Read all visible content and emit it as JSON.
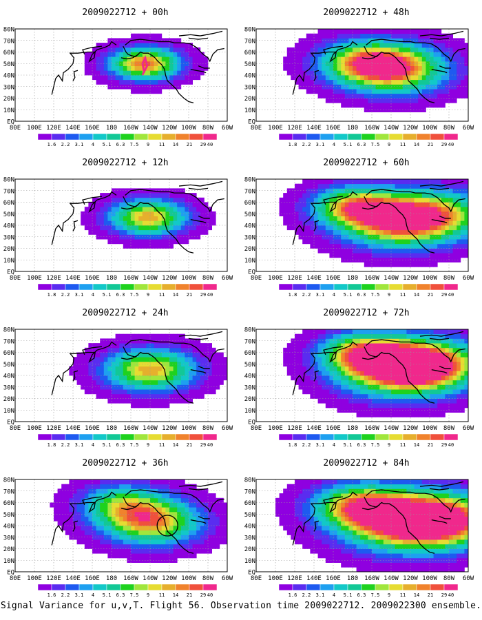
{
  "caption": "Signal Variance for u,v,T. Flight 56. Observation time 2009022712. 2009022300 ensemble.",
  "colors": {
    "palette": [
      "#8f00e0",
      "#5a2cf0",
      "#1e5af0",
      "#1ea0f0",
      "#12c8c8",
      "#12c896",
      "#1ed21e",
      "#a0e63c",
      "#e6dc32",
      "#e6af2d",
      "#f0822d",
      "#f0503c",
      "#f0288c"
    ],
    "coast": "#000000",
    "grid": "#9a9a9a",
    "route": "#f0288c"
  },
  "chart_data": [
    {
      "type": "heatmap",
      "title": "2009022712 + 00h",
      "x_tick_labels": [
        "80E",
        "100E",
        "120E",
        "140E",
        "160E",
        "180",
        "160W",
        "140W",
        "120W",
        "100W",
        "80W",
        "60W"
      ],
      "y_tick_labels": [
        "EQ",
        "10N",
        "20N",
        "30N",
        "40N",
        "50N",
        "60N",
        "70N",
        "80N"
      ],
      "xlim": [
        80,
        300
      ],
      "ylim": [
        0,
        80
      ],
      "grid": true,
      "colorbar_levels": [
        "1.6",
        "2.2",
        "3.1",
        "4",
        "5.1",
        "6.3",
        "7.5",
        "9",
        "11",
        "14",
        "21",
        "29",
        "40"
      ],
      "maxima": [
        {
          "lon": 215,
          "lat": 50,
          "peak": 11,
          "spread": 1.0
        }
      ],
      "features": {
        "route": true
      }
    },
    {
      "type": "heatmap",
      "title": "2009022712 + 48h",
      "x_tick_labels": [
        "80E",
        "100E",
        "120E",
        "140E",
        "160E",
        "180",
        "160W",
        "140W",
        "120W",
        "100W",
        "80W",
        "60W"
      ],
      "y_tick_labels": [
        "EQ",
        "10N",
        "20N",
        "30N",
        "40N",
        "50N",
        "60N",
        "70N",
        "80N"
      ],
      "xlim": [
        80,
        300
      ],
      "ylim": [
        0,
        80
      ],
      "grid": true,
      "colorbar_levels": [
        "1.8",
        "2.2",
        "3.1",
        "4",
        "5.1",
        "6.3",
        "7.5",
        "9",
        "11",
        "14",
        "21",
        "29",
        "40"
      ],
      "maxima": [
        {
          "lon": 225,
          "lat": 45,
          "peak": 10,
          "spread": 1.5
        },
        {
          "lon": 190,
          "lat": 52,
          "peak": 7,
          "spread": 1.3
        }
      ]
    },
    {
      "type": "heatmap",
      "title": "2009022712 + 12h",
      "x_tick_labels": [
        "80E",
        "100E",
        "120E",
        "140E",
        "160E",
        "180",
        "160W",
        "140W",
        "120W",
        "100W",
        "80W",
        "60W"
      ],
      "y_tick_labels": [
        "EQ",
        "10N",
        "20N",
        "30N",
        "40N",
        "50N",
        "60N",
        "70N",
        "80N"
      ],
      "xlim": [
        80,
        300
      ],
      "ylim": [
        0,
        80
      ],
      "grid": true,
      "colorbar_levels": [
        "1.8",
        "2.2",
        "3.1",
        "4",
        "5.1",
        "6.3",
        "7.5",
        "9",
        "11",
        "14",
        "21",
        "29",
        "40"
      ],
      "maxima": [
        {
          "lon": 218,
          "lat": 47,
          "peak": 10,
          "spread": 1.1
        }
      ]
    },
    {
      "type": "heatmap",
      "title": "2009022712 + 60h",
      "x_tick_labels": [
        "80E",
        "100E",
        "120E",
        "140E",
        "160E",
        "180",
        "160W",
        "140W",
        "120W",
        "100W",
        "80W",
        "60W"
      ],
      "y_tick_labels": [
        "EQ",
        "10N",
        "20N",
        "30N",
        "40N",
        "50N",
        "60N",
        "70N",
        "80N"
      ],
      "xlim": [
        80,
        300
      ],
      "ylim": [
        0,
        80
      ],
      "grid": true,
      "colorbar_levels": [
        "1.8",
        "2.2",
        "3.1",
        "4",
        "5.1",
        "6.3",
        "7.5",
        "9",
        "11",
        "14",
        "21",
        "29",
        "40"
      ],
      "maxima": [
        {
          "lon": 225,
          "lat": 43,
          "peak": 10,
          "spread": 1.6
        },
        {
          "lon": 180,
          "lat": 57,
          "peak": 8,
          "spread": 1.2
        },
        {
          "lon": 270,
          "lat": 50,
          "peak": 7,
          "spread": 1.5
        }
      ]
    },
    {
      "type": "heatmap",
      "title": "2009022712 + 24h",
      "x_tick_labels": [
        "80E",
        "100E",
        "120E",
        "140E",
        "160E",
        "180",
        "160W",
        "140W",
        "120W",
        "100W",
        "80W",
        "60W"
      ],
      "y_tick_labels": [
        "EQ",
        "10N",
        "20N",
        "30N",
        "40N",
        "50N",
        "60N",
        "70N",
        "80N"
      ],
      "xlim": [
        80,
        300
      ],
      "ylim": [
        0,
        80
      ],
      "grid": true,
      "colorbar_levels": [
        "1.8",
        "2.2",
        "3.1",
        "4",
        "5.1",
        "6.3",
        "7.5",
        "9",
        "11",
        "14",
        "21",
        "29",
        "40"
      ],
      "maxima": [
        {
          "lon": 220,
          "lat": 45,
          "peak": 10,
          "spread": 1.3
        }
      ]
    },
    {
      "type": "heatmap",
      "title": "2009022712 + 72h",
      "x_tick_labels": [
        "80E",
        "100E",
        "120E",
        "140E",
        "160E",
        "180",
        "160W",
        "140W",
        "120W",
        "100W",
        "80W",
        "60W"
      ],
      "y_tick_labels": [
        "EQ",
        "10N",
        "20N",
        "30N",
        "40N",
        "50N",
        "60N",
        "70N",
        "80N"
      ],
      "xlim": [
        80,
        300
      ],
      "ylim": [
        0,
        80
      ],
      "grid": true,
      "colorbar_levels": [
        "1.8",
        "2.2",
        "3.1",
        "4",
        "5.1",
        "6.3",
        "7.5",
        "9",
        "11",
        "14",
        "21",
        "29",
        "40"
      ],
      "maxima": [
        {
          "lon": 225,
          "lat": 45,
          "peak": 10,
          "spread": 1.7
        },
        {
          "lon": 262,
          "lat": 50,
          "peak": 9,
          "spread": 1.5
        },
        {
          "lon": 190,
          "lat": 60,
          "peak": 8,
          "spread": 1.2
        }
      ]
    },
    {
      "type": "heatmap",
      "title": "2009022712 + 36h",
      "x_tick_labels": [
        "80E",
        "100E",
        "120E",
        "140E",
        "160E",
        "180",
        "160W",
        "140W",
        "120W",
        "100W",
        "80W",
        "60W"
      ],
      "y_tick_labels": [
        "EQ",
        "10N",
        "20N",
        "30N",
        "40N",
        "50N",
        "60N",
        "70N",
        "80N"
      ],
      "xlim": [
        80,
        300
      ],
      "ylim": [
        0,
        80
      ],
      "grid": true,
      "colorbar_levels": [
        "1.6",
        "2.2",
        "3.1",
        "4",
        "5.1",
        "6.3",
        "7.5",
        "9",
        "11",
        "14",
        "21",
        "29",
        "40"
      ],
      "maxima": [
        {
          "lon": 222,
          "lat": 43,
          "peak": 10,
          "spread": 1.4
        },
        {
          "lon": 190,
          "lat": 60,
          "peak": 6,
          "spread": 1.2
        }
      ],
      "features": {
        "circle": {
          "lon": 238,
          "lat": 40
        }
      }
    },
    {
      "type": "heatmap",
      "title": "2009022712 + 84h",
      "x_tick_labels": [
        "80E",
        "100E",
        "120E",
        "140E",
        "160E",
        "180",
        "160W",
        "140W",
        "120W",
        "100W",
        "80W",
        "60W"
      ],
      "y_tick_labels": [
        "EQ",
        "10N",
        "20N",
        "30N",
        "40N",
        "50N",
        "60N",
        "70N",
        "80N"
      ],
      "xlim": [
        80,
        300
      ],
      "ylim": [
        0,
        80
      ],
      "grid": true,
      "colorbar_levels": [
        "1.6",
        "2.2",
        "3.1",
        "4",
        "5.1",
        "6.3",
        "7.5",
        "9",
        "11",
        "14",
        "21",
        "29",
        "40"
      ],
      "maxima": [
        {
          "lon": 230,
          "lat": 43,
          "peak": 10,
          "spread": 1.8
        },
        {
          "lon": 275,
          "lat": 45,
          "peak": 10,
          "spread": 1.6
        },
        {
          "lon": 185,
          "lat": 58,
          "peak": 8,
          "spread": 1.3
        }
      ]
    }
  ]
}
